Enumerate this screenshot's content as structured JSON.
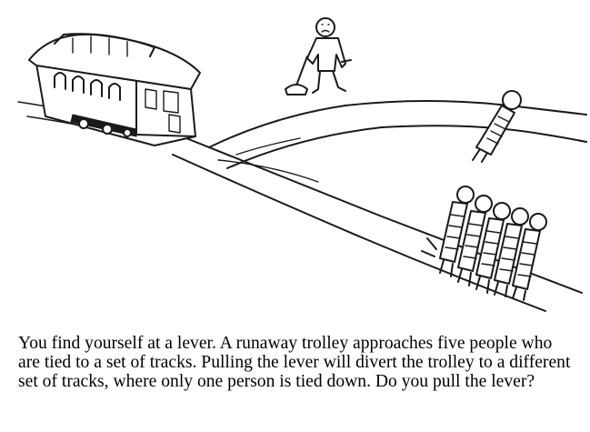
{
  "caption": "You find yourself at a lever. A runaway trolley approaches five people who are tied to a set of tracks. Pulling the lever will divert the trolley to a different set of tracks, where only one person is tied down. Do you pull the lever?",
  "illustration": {
    "elements": [
      "trolley",
      "lever-operator",
      "lever",
      "track-junction",
      "one-person-on-upper-track",
      "five-people-on-lower-track"
    ]
  }
}
